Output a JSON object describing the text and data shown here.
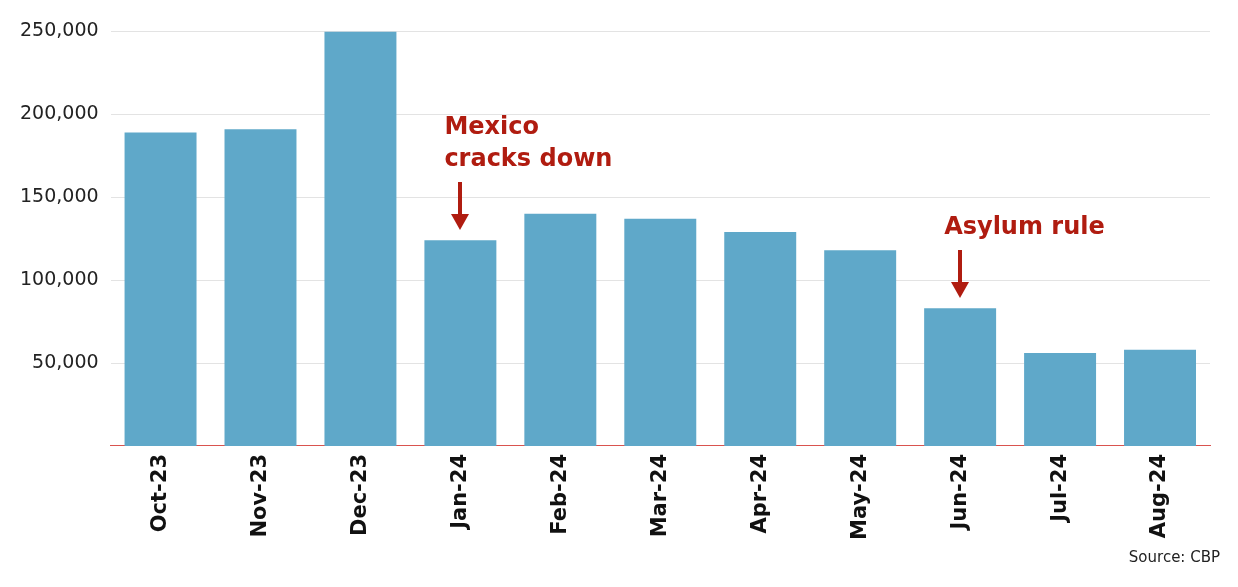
{
  "chart_data": {
    "type": "bar",
    "categories": [
      "Oct-23",
      "Nov-23",
      "Dec-23",
      "Jan-24",
      "Feb-24",
      "Mar-24",
      "Apr-24",
      "May-24",
      "Jun-24",
      "Jul-24",
      "Aug-24"
    ],
    "values": [
      189000,
      191000,
      250000,
      124000,
      140000,
      137000,
      129000,
      118000,
      83000,
      56000,
      58000
    ],
    "color": "#5fa8c9",
    "ylim": [
      0,
      250000
    ],
    "yticks": [
      {
        "value": 50000,
        "label": "50,000"
      },
      {
        "value": 100000,
        "label": "100,000"
      },
      {
        "value": 150000,
        "label": "150,000"
      },
      {
        "value": 200000,
        "label": "200,000"
      },
      {
        "value": 250000,
        "label": "250,000"
      }
    ],
    "grid": "y",
    "annotations": [
      {
        "text": "Mexico cracks down",
        "x": "Jan-24",
        "y": 124000
      },
      {
        "text": "Asylum rule",
        "x": "Jun-24",
        "y": 83000
      },
      "Source: CBP"
    ]
  }
}
